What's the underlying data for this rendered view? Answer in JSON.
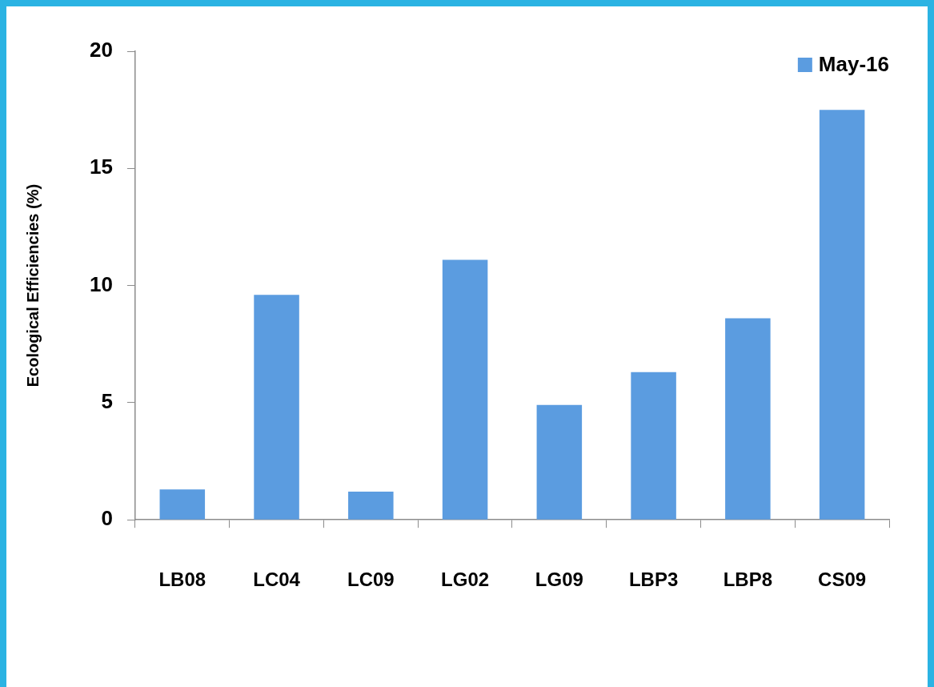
{
  "chart_data": {
    "type": "bar",
    "ylabel": "Ecological Efficiencies (%)",
    "categories": [
      "LB08",
      "LC04",
      "LC09",
      "LG02",
      "LG09",
      "LBP3",
      "LBP8",
      "CS09"
    ],
    "series": [
      {
        "name": "May-16",
        "color": "#5b9ce0",
        "values": [
          1.3,
          9.6,
          1.2,
          11.1,
          4.9,
          6.3,
          8.6,
          17.5
        ]
      }
    ],
    "ylim": [
      0,
      20
    ],
    "yticks": [
      0,
      5,
      10,
      15,
      20
    ],
    "grid": false,
    "legend": "top right"
  }
}
